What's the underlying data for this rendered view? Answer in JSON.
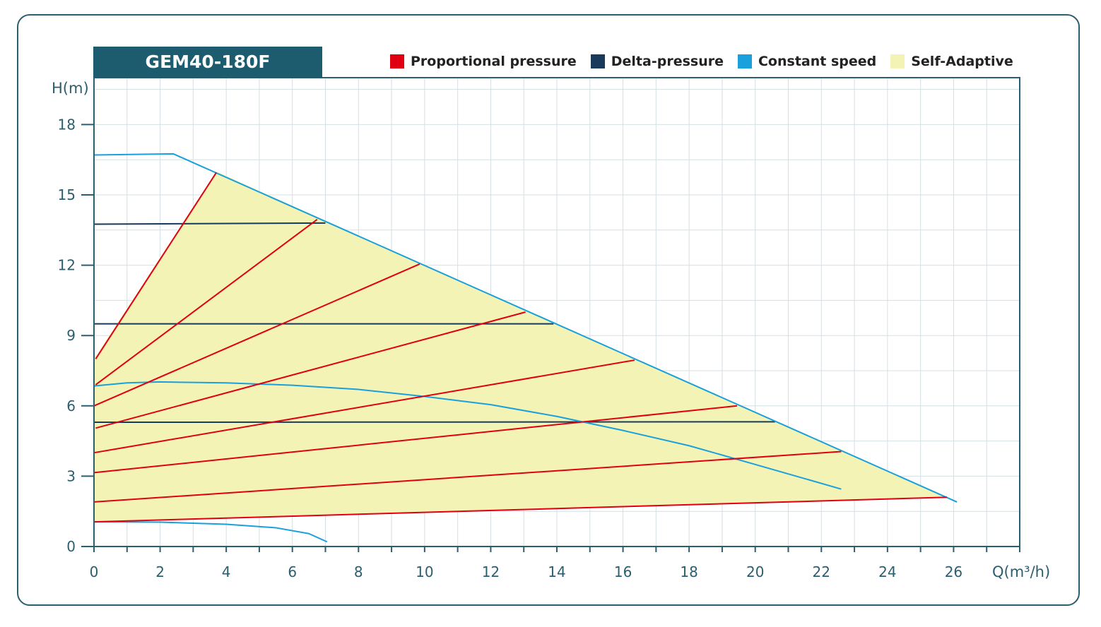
{
  "title": "GEM40-180F",
  "legend": [
    {
      "label": "Proportional pressure",
      "color": "#e00012"
    },
    {
      "label": "Delta-pressure",
      "color": "#1a3a5c"
    },
    {
      "label": "Constant speed",
      "color": "#1aa0dc"
    },
    {
      "label": "Self-Adaptive",
      "color": "#f3f3b6"
    }
  ],
  "colors": {
    "frame": "#2b5e6e",
    "banner": "#1c5c6e",
    "grid": "#d5dfe3",
    "axis": "#2b5e6e"
  },
  "chart_data": {
    "type": "line",
    "title": "GEM40-180F",
    "xlabel": "Q(m³/h)",
    "ylabel": "H(m)",
    "xlim": [
      0,
      28
    ],
    "ylim": [
      0,
      20
    ],
    "x_ticks": [
      0,
      2,
      4,
      6,
      8,
      10,
      12,
      14,
      16,
      18,
      20,
      22,
      24,
      26
    ],
    "y_ticks": [
      0,
      3,
      6,
      9,
      12,
      15,
      18
    ],
    "grid": true,
    "legend_position": "top-right",
    "self_adaptive_region": [
      [
        0,
        1.05
      ],
      [
        25.8,
        2.1
      ],
      [
        7.0,
        13.9
      ],
      [
        3.7,
        16.0
      ],
      [
        0,
        8.0
      ]
    ],
    "series": [
      {
        "name": "Constant speed",
        "group": "constant",
        "points": [
          [
            0,
            16.7
          ],
          [
            2.4,
            16.75
          ],
          [
            26.1,
            1.9
          ]
        ]
      },
      {
        "name": "Constant speed",
        "group": "constant",
        "points": [
          [
            0,
            6.85
          ],
          [
            1,
            6.98
          ],
          [
            2,
            7.02
          ],
          [
            4,
            6.98
          ],
          [
            6,
            6.88
          ],
          [
            8,
            6.7
          ],
          [
            10,
            6.4
          ],
          [
            12,
            6.05
          ],
          [
            14,
            5.55
          ],
          [
            16,
            4.95
          ],
          [
            18,
            4.3
          ],
          [
            20,
            3.5
          ],
          [
            22.6,
            2.45
          ]
        ]
      },
      {
        "name": "Constant speed",
        "group": "constant",
        "points": [
          [
            0,
            1.05
          ],
          [
            2,
            1.04
          ],
          [
            4,
            0.95
          ],
          [
            5.5,
            0.8
          ],
          [
            6.5,
            0.55
          ],
          [
            7.05,
            0.2
          ]
        ]
      },
      {
        "name": "Delta-pressure",
        "group": "delta",
        "points": [
          [
            0,
            13.75
          ],
          [
            7.0,
            13.8
          ]
        ]
      },
      {
        "name": "Delta-pressure",
        "group": "delta",
        "points": [
          [
            0,
            9.5
          ],
          [
            13.9,
            9.5
          ]
        ]
      },
      {
        "name": "Delta-pressure",
        "group": "delta",
        "points": [
          [
            0,
            5.3
          ],
          [
            20.6,
            5.32
          ]
        ]
      },
      {
        "name": "Proportional pressure",
        "group": "proportional",
        "points": [
          [
            0.05,
            8.0
          ],
          [
            3.7,
            15.95
          ]
        ]
      },
      {
        "name": "Proportional pressure",
        "group": "proportional",
        "points": [
          [
            0.05,
            6.9
          ],
          [
            6.75,
            13.95
          ]
        ]
      },
      {
        "name": "Proportional pressure",
        "group": "proportional",
        "points": [
          [
            0,
            6.0
          ],
          [
            9.85,
            12.05
          ]
        ]
      },
      {
        "name": "Proportional pressure",
        "group": "proportional",
        "points": [
          [
            0.05,
            5.05
          ],
          [
            13.05,
            10.0
          ]
        ]
      },
      {
        "name": "Proportional pressure",
        "group": "proportional",
        "points": [
          [
            0,
            4.0
          ],
          [
            16.35,
            7.95
          ]
        ]
      },
      {
        "name": "Proportional pressure",
        "group": "proportional",
        "points": [
          [
            0,
            3.15
          ],
          [
            19.45,
            6.0
          ]
        ]
      },
      {
        "name": "Proportional pressure",
        "group": "proportional",
        "points": [
          [
            0,
            1.9
          ],
          [
            22.6,
            4.05
          ]
        ]
      },
      {
        "name": "Proportional pressure",
        "group": "proportional",
        "points": [
          [
            0,
            1.05
          ],
          [
            25.8,
            2.1
          ]
        ]
      }
    ]
  }
}
